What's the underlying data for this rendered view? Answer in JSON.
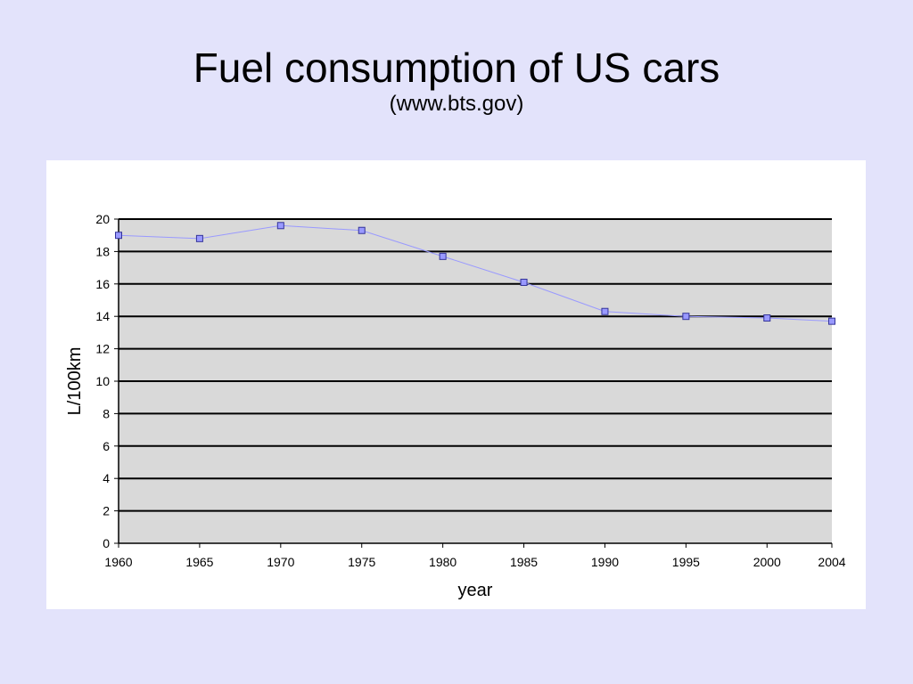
{
  "slide": {
    "title": "Fuel consumption of US cars",
    "subtitle": "(www.bts.gov)"
  },
  "colors": {
    "background": "#e3e3fb",
    "plot_area": "#d9d9d9",
    "gridline": "#000000",
    "series_line": "#9999ff",
    "marker_fill": "#9999ff",
    "marker_stroke": "#333399"
  },
  "chart_data": {
    "type": "line",
    "title": "",
    "xlabel": "year",
    "ylabel": "L/100km",
    "x": [
      1960,
      1965,
      1970,
      1975,
      1980,
      1985,
      1990,
      1995,
      2000,
      2004
    ],
    "series": [
      {
        "values": [
          19.0,
          18.8,
          19.6,
          19.3,
          17.7,
          16.1,
          14.3,
          14.0,
          13.9,
          13.7
        ]
      }
    ],
    "ylim": [
      0,
      20
    ],
    "yticks": [
      0,
      2,
      4,
      6,
      8,
      10,
      12,
      14,
      16,
      18,
      20
    ],
    "xlim": [
      1960,
      2004
    ],
    "xticks": [
      1960,
      1965,
      1970,
      1975,
      1980,
      1985,
      1990,
      1995,
      2000,
      2004
    ],
    "grid": true,
    "legend": "none",
    "marker": "square"
  }
}
